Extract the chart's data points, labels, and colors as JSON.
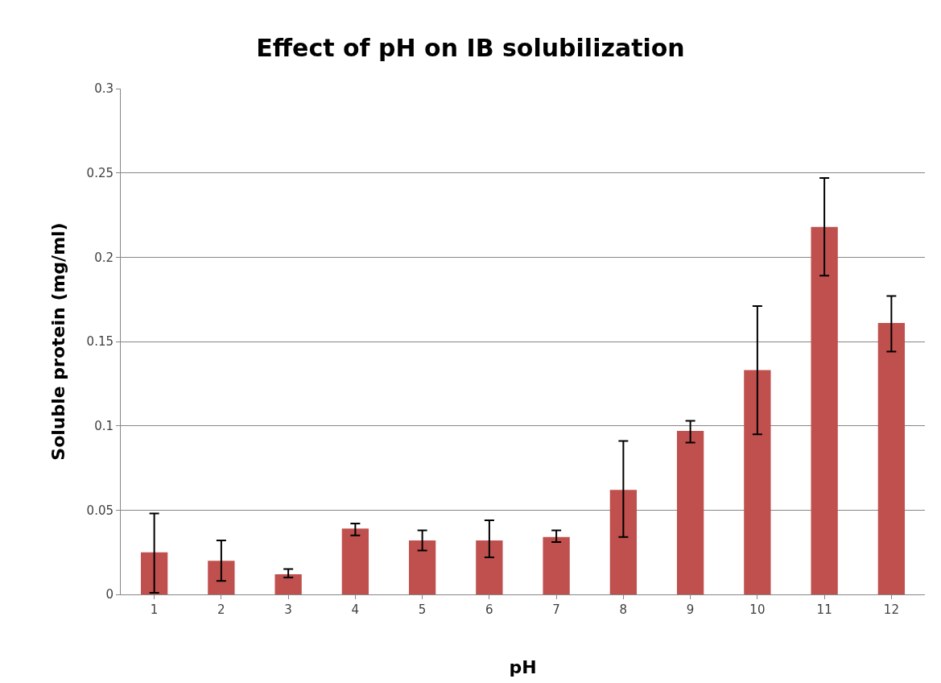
{
  "chart_data": {
    "type": "bar",
    "title": "Effect of pH on IB solubilization",
    "xlabel": "pH",
    "ylabel": "Soluble protein (mg/ml)",
    "x": [
      1,
      2,
      3,
      4,
      5,
      6,
      7,
      8,
      9,
      10,
      11,
      12
    ],
    "values": [
      0.025,
      0.02,
      0.012,
      0.039,
      0.032,
      0.032,
      0.034,
      0.062,
      0.097,
      0.133,
      0.218,
      0.161
    ],
    "errors": [
      [
        0.001,
        0.048
      ],
      [
        0.008,
        0.032
      ],
      [
        0.01,
        0.015
      ],
      [
        0.035,
        0.042
      ],
      [
        0.026,
        0.038
      ],
      [
        0.022,
        0.044
      ],
      [
        0.031,
        0.038
      ],
      [
        0.034,
        0.091
      ],
      [
        0.09,
        0.103
      ],
      [
        0.095,
        0.171
      ],
      [
        0.189,
        0.247
      ],
      [
        0.144,
        0.177
      ]
    ],
    "color": "#c0504d",
    "xlim": [
      0.5,
      12.5
    ],
    "xticks": [
      1,
      2,
      3,
      4,
      5,
      6,
      7,
      8,
      9,
      10,
      11,
      12
    ],
    "ylim": [
      0,
      0.3
    ],
    "yticks": [
      0,
      0.05,
      0.1,
      0.15,
      0.2,
      0.25,
      0.3
    ],
    "grid": "y"
  }
}
